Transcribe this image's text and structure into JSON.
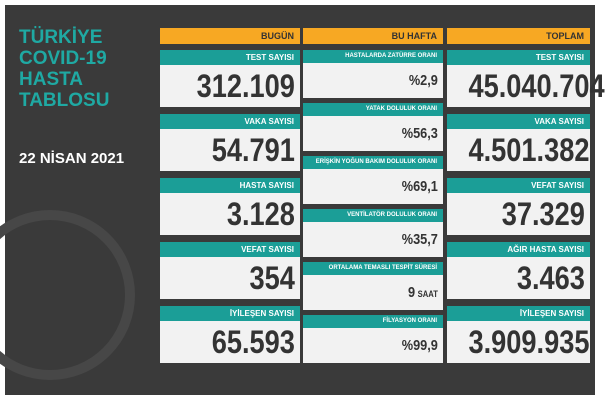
{
  "header": {
    "title": [
      "TÜRKİYE",
      "COVID-19",
      "HASTA",
      "TABLOSU"
    ],
    "date": "22 NİSAN 2021"
  },
  "columns": [
    {
      "heading": "BUGÜN",
      "items": [
        {
          "label": "TEST SAYISI",
          "value": "312.109"
        },
        {
          "label": "VAKA SAYISI",
          "value": "54.791"
        },
        {
          "label": "HASTA SAYISI",
          "value": "3.128"
        },
        {
          "label": "VEFAT SAYISI",
          "value": "354"
        },
        {
          "label": "İYİLEŞEN SAYISI",
          "value": "65.593"
        }
      ]
    },
    {
      "heading": "BU HAFTA",
      "items": [
        {
          "label": "HASTALARDA ZATÜRRE ORANI",
          "value": "%2,9"
        },
        {
          "label": "YATAK DOLULUK ORANI",
          "value": "%56,3"
        },
        {
          "label": "ERİŞKİN YOĞUN BAKIM DOLULUK ORANI",
          "value": "%69,1"
        },
        {
          "label": "VENTİLATÖR DOLULUK ORANI",
          "value": "%35,7"
        },
        {
          "label": "ORTALAMA TEMASLI TESPİT SÜRESİ",
          "value": "9",
          "unit": "SAAT"
        },
        {
          "label": "FİLYASYON ORANI",
          "value": "%99,9"
        }
      ]
    },
    {
      "heading": "TOPLAM",
      "items": [
        {
          "label": "TEST SAYISI",
          "value": "45.040.704"
        },
        {
          "label": "VAKA SAYISI",
          "value": "4.501.382"
        },
        {
          "label": "VEFAT SAYISI",
          "value": "37.329"
        },
        {
          "label": "AĞIR HASTA SAYISI",
          "value": "3.463"
        },
        {
          "label": "İYİLEŞEN SAYISI",
          "value": "3.909.935"
        }
      ]
    }
  ]
}
